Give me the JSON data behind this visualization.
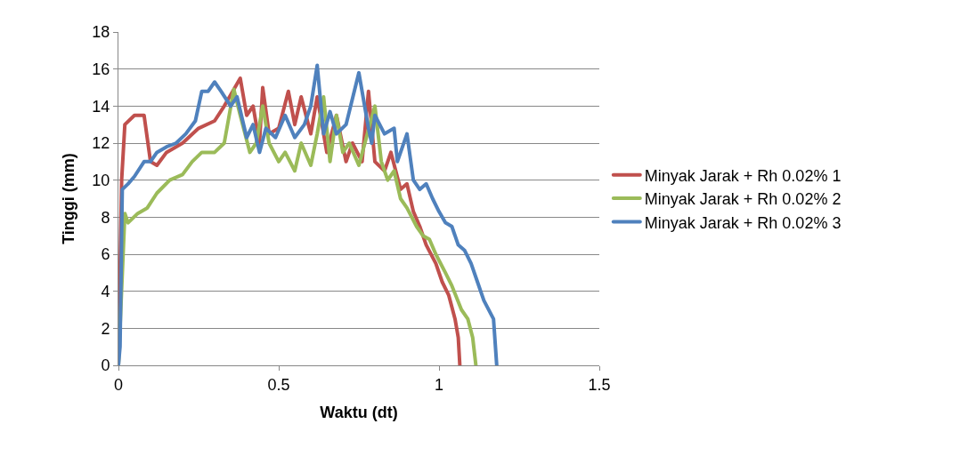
{
  "chart_data": {
    "type": "line",
    "xlabel": "Waktu (dt)",
    "ylabel": "Tinggi (mm)",
    "xlim": [
      0,
      1.5
    ],
    "xticks": [
      0,
      0.5,
      1,
      1.5
    ],
    "ylim": [
      0,
      18
    ],
    "yticks": [
      0,
      2,
      4,
      6,
      8,
      10,
      12,
      14,
      16,
      18
    ],
    "grid": "y",
    "legend": "right",
    "marker": "none",
    "line_style": "solid",
    "series": [
      {
        "name": "Minyak Jarak + Rh 0.02% 1",
        "color": "#c0504d",
        "x": [
          0,
          0.01,
          0.02,
          0.05,
          0.08,
          0.1,
          0.12,
          0.15,
          0.2,
          0.25,
          0.3,
          0.33,
          0.38,
          0.4,
          0.42,
          0.44,
          0.45,
          0.47,
          0.5,
          0.53,
          0.55,
          0.57,
          0.6,
          0.62,
          0.65,
          0.68,
          0.71,
          0.73,
          0.76,
          0.78,
          0.8,
          0.83,
          0.85,
          0.88,
          0.9,
          0.92,
          0.94,
          0.96,
          0.99,
          1.01,
          1.03,
          1.05,
          1.06,
          1.065
        ],
        "values": [
          0,
          10,
          13,
          13.5,
          13.5,
          11,
          10.8,
          11.5,
          12,
          12.8,
          13.2,
          14,
          15.5,
          13.5,
          14,
          12,
          15,
          12.5,
          12.8,
          14.8,
          13,
          14.5,
          12.5,
          14.5,
          11.5,
          13.5,
          11,
          12,
          11,
          14.8,
          11,
          10.5,
          11.5,
          9.5,
          9.8,
          8.3,
          7.5,
          6.5,
          5.5,
          4.5,
          3.8,
          2.5,
          1.5,
          0
        ]
      },
      {
        "name": "Minyak Jarak + Rh 0.02% 2",
        "color": "#9bbb59",
        "x": [
          0,
          0.02,
          0.03,
          0.06,
          0.09,
          0.12,
          0.16,
          0.2,
          0.23,
          0.26,
          0.3,
          0.33,
          0.36,
          0.38,
          0.41,
          0.43,
          0.45,
          0.47,
          0.5,
          0.52,
          0.55,
          0.57,
          0.6,
          0.62,
          0.64,
          0.66,
          0.68,
          0.7,
          0.72,
          0.75,
          0.8,
          0.82,
          0.84,
          0.86,
          0.88,
          0.9,
          0.93,
          0.95,
          0.97,
          0.99,
          1.02,
          1.04,
          1.07,
          1.09,
          1.105,
          1.115
        ],
        "values": [
          0,
          8.2,
          7.7,
          8.2,
          8.5,
          9.3,
          10,
          10.3,
          11,
          11.5,
          11.5,
          12,
          14.9,
          13.5,
          11.5,
          12,
          14,
          12,
          11,
          11.5,
          10.5,
          12,
          10.8,
          12.5,
          14.5,
          11,
          13.5,
          11.5,
          12,
          10.8,
          14,
          11,
          10,
          10.5,
          9,
          8.5,
          7.5,
          7,
          6.8,
          6,
          5,
          4.3,
          3,
          2.5,
          1.5,
          0
        ]
      },
      {
        "name": "Minyak Jarak + Rh 0.02% 3",
        "color": "#4f81bd",
        "x": [
          0,
          0.005,
          0.012,
          0.03,
          0.05,
          0.08,
          0.1,
          0.12,
          0.15,
          0.18,
          0.21,
          0.24,
          0.26,
          0.28,
          0.3,
          0.32,
          0.35,
          0.37,
          0.4,
          0.42,
          0.44,
          0.46,
          0.49,
          0.52,
          0.55,
          0.58,
          0.6,
          0.62,
          0.64,
          0.66,
          0.68,
          0.71,
          0.75,
          0.78,
          0.79,
          0.8,
          0.83,
          0.86,
          0.87,
          0.9,
          0.92,
          0.94,
          0.96,
          0.98,
          1.0,
          1.02,
          1.04,
          1.06,
          1.08,
          1.1,
          1.12,
          1.14,
          1.17,
          1.18
        ],
        "values": [
          0,
          1,
          9.5,
          9.8,
          10.2,
          11,
          11,
          11.5,
          11.8,
          12,
          12.5,
          13.2,
          14.8,
          14.8,
          15.3,
          14.8,
          14,
          14.5,
          12.3,
          13,
          11.5,
          12.8,
          12.3,
          13.5,
          12.3,
          13,
          14,
          16.2,
          12.5,
          13.7,
          12.5,
          13,
          15.8,
          12.8,
          12,
          13.5,
          12.5,
          12.8,
          11,
          12.5,
          10,
          9.5,
          9.8,
          9,
          8.3,
          7.7,
          7.5,
          6.5,
          6.2,
          5.5,
          4.5,
          3.5,
          2.5,
          0
        ]
      }
    ]
  }
}
